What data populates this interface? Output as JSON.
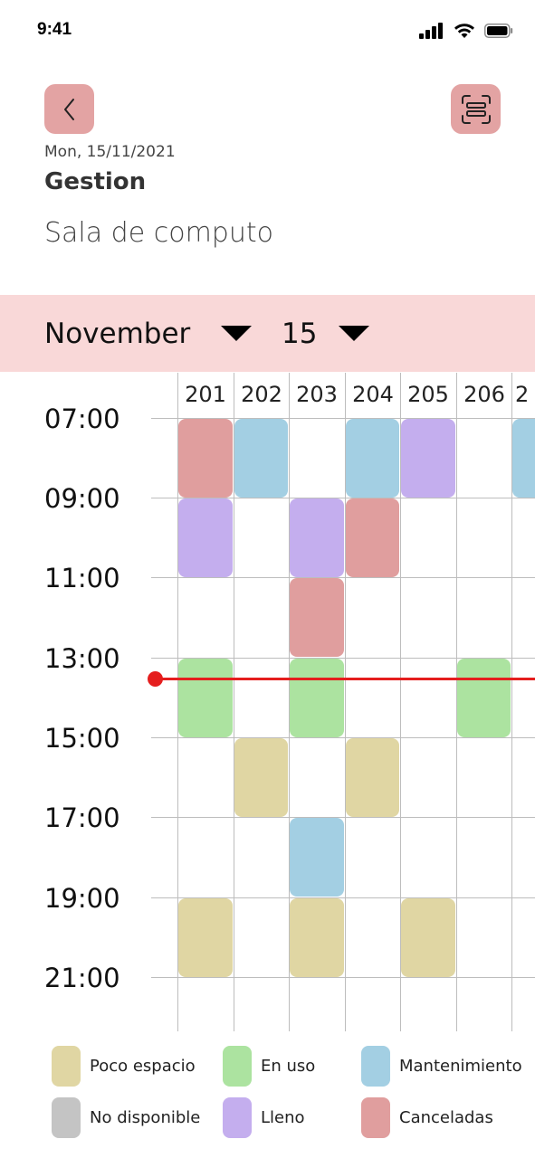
{
  "status_bar": {
    "time": "9:41"
  },
  "header": {
    "back_icon": "chevron-left-icon",
    "scan_icon": "scan-frame-icon",
    "date": "Mon, 15/11/2021",
    "title": "Gestion",
    "subtitle": "Sala de computo"
  },
  "selector": {
    "month": "November",
    "day": "15"
  },
  "schedule": {
    "rooms": [
      "201",
      "202",
      "203",
      "204",
      "205",
      "206",
      "2"
    ],
    "times": [
      "07:00",
      "09:00",
      "11:00",
      "13:00",
      "15:00",
      "17:00",
      "19:00",
      "21:00"
    ],
    "colors": {
      "poco_espacio": "#e0d6a3",
      "en_uso": "#ace3a0",
      "mantenimiento": "#a3cfe3",
      "no_disponible": "#c4c4c4",
      "lleno": "#c4aeee",
      "canceladas": "#e09e9e"
    },
    "current_time_indicator_color": "#e51e1e"
  },
  "legend": {
    "poco_espacio": "Poco espacio",
    "en_uso": "En uso",
    "mantenimiento": "Mantenimiento",
    "no_disponible": "No disponible",
    "lleno": "Lleno",
    "canceladas": "Canceladas"
  }
}
